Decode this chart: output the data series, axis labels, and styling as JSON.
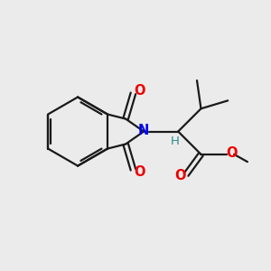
{
  "bg_color": "#ebebeb",
  "bond_color": "#1a1a1a",
  "N_color": "#0000ee",
  "O_color": "#ee0000",
  "H_color": "#2e8b8b",
  "lw": 1.6,
  "xlim": [
    0,
    10
  ],
  "ylim": [
    0,
    10
  ]
}
